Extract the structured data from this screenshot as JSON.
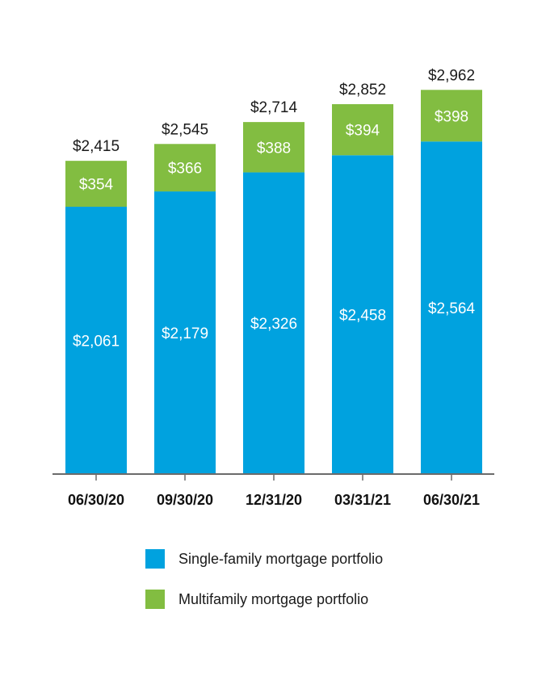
{
  "chart_data": {
    "type": "bar",
    "stacked": true,
    "categories": [
      "06/30/20",
      "09/30/20",
      "12/31/20",
      "03/31/21",
      "06/30/21"
    ],
    "series": [
      {
        "name": "Single-family mortgage portfolio",
        "values": [
          2061,
          2179,
          2326,
          2458,
          2564
        ],
        "color": "#00a2df",
        "labels": [
          "$2,061",
          "$2,179",
          "$2,326",
          "$2,458",
          "$2,564"
        ]
      },
      {
        "name": "Multifamily mortgage portfolio",
        "values": [
          354,
          366,
          388,
          394,
          398
        ],
        "color": "#82bd41",
        "labels": [
          "$354",
          "$366",
          "$388",
          "$394",
          "$398"
        ]
      }
    ],
    "totals": [
      2415,
      2545,
      2714,
      2852,
      2962
    ],
    "total_labels": [
      "$2,415",
      "$2,545",
      "$2,714",
      "$2,852",
      "$2,962"
    ],
    "ylim": [
      0,
      3080
    ],
    "title": "",
    "xlabel": "",
    "ylabel": "",
    "grid": false,
    "legend_position": "bottom"
  }
}
